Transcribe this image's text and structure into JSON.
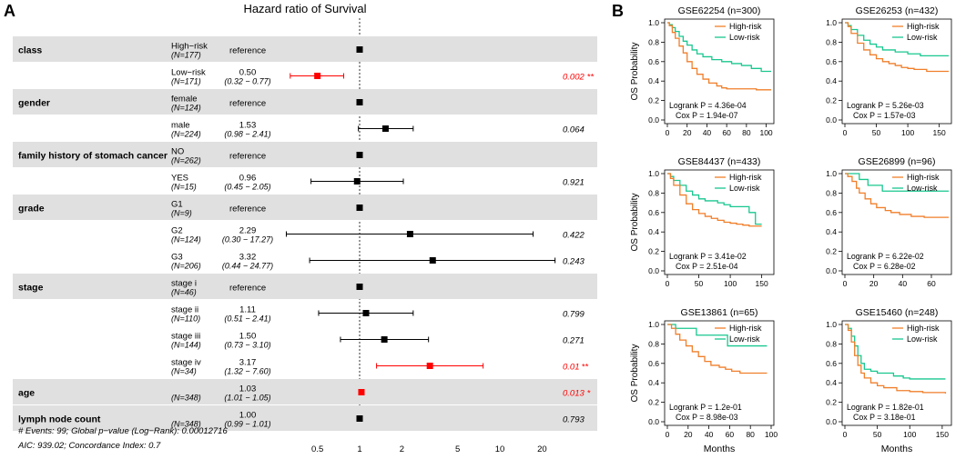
{
  "panel_labels": {
    "a": "A",
    "b": "B"
  },
  "colors": {
    "band": "#e0e0e0",
    "marker": "#000000",
    "sig": "#ff0000",
    "high_risk": "#f07f2a",
    "low_risk": "#18c78f",
    "axis": "#000000"
  },
  "chart_data": [
    {
      "type": "forest",
      "title": "Hazard ratio of Survival",
      "x_scale": "log",
      "xlim": [
        0.4,
        30
      ],
      "x_ticks": [
        0.5,
        1,
        2,
        5,
        10,
        20
      ],
      "x_tick_labels": [
        "0.5",
        "1",
        "2",
        "5",
        "10",
        "20"
      ],
      "reference_line": 1,
      "reference_text": "reference",
      "rows": [
        {
          "var": "class",
          "level": "High−risk",
          "n": "(N=177)",
          "ref": true,
          "band": true
        },
        {
          "var": "",
          "level": "Low−risk",
          "n": "(N=171)",
          "hr": 0.5,
          "hr_text": "0.50",
          "ci_text": "(0.32 − 0.77)",
          "lo": 0.32,
          "hi": 0.77,
          "p": "0.002",
          "stars": "**",
          "sig": true,
          "band": false
        },
        {
          "var": "gender",
          "level": "female",
          "n": "(N=124)",
          "ref": true,
          "band": true
        },
        {
          "var": "",
          "level": "male",
          "n": "(N=224)",
          "hr": 1.53,
          "hr_text": "1.53",
          "ci_text": "(0.98 − 2.41)",
          "lo": 0.98,
          "hi": 2.41,
          "p": "0.064",
          "stars": "",
          "sig": false,
          "band": false
        },
        {
          "var": "family history of stomach cancer",
          "level": "NO",
          "n": "(N=262)",
          "ref": true,
          "band": true
        },
        {
          "var": "",
          "level": "YES",
          "n": "(N=15)",
          "hr": 0.96,
          "hr_text": "0.96",
          "ci_text": "(0.45 − 2.05)",
          "lo": 0.45,
          "hi": 2.05,
          "p": "0.921",
          "stars": "",
          "sig": false,
          "band": false
        },
        {
          "var": "grade",
          "level": "G1",
          "n": "(N=9)",
          "ref": true,
          "band": true
        },
        {
          "var": "",
          "level": "G2",
          "n": "(N=124)",
          "hr": 2.29,
          "hr_text": "2.29",
          "ci_text": "(0.30 − 17.27)",
          "lo": 0.3,
          "hi": 17.27,
          "p": "0.422",
          "stars": "",
          "sig": false,
          "band": false
        },
        {
          "var": "",
          "level": "G3",
          "n": "(N=206)",
          "hr": 3.32,
          "hr_text": "3.32",
          "ci_text": "(0.44 − 24.77)",
          "lo": 0.44,
          "hi": 24.77,
          "p": "0.243",
          "stars": "",
          "sig": false,
          "band": false
        },
        {
          "var": "stage",
          "level": "stage i",
          "n": "(N=46)",
          "ref": true,
          "band": true
        },
        {
          "var": "",
          "level": "stage ii",
          "n": "(N=110)",
          "hr": 1.11,
          "hr_text": "1.11",
          "ci_text": "(0.51 − 2.41)",
          "lo": 0.51,
          "hi": 2.41,
          "p": "0.799",
          "stars": "",
          "sig": false,
          "band": false
        },
        {
          "var": "",
          "level": "stage iii",
          "n": "(N=144)",
          "hr": 1.5,
          "hr_text": "1.50",
          "ci_text": "(0.73 − 3.10)",
          "lo": 0.73,
          "hi": 3.1,
          "p": "0.271",
          "stars": "",
          "sig": false,
          "band": false
        },
        {
          "var": "",
          "level": "stage iv",
          "n": "(N=34)",
          "hr": 3.17,
          "hr_text": "3.17",
          "ci_text": "(1.32 − 7.60)",
          "lo": 1.32,
          "hi": 7.6,
          "p": "0.01",
          "stars": "**",
          "sig": true,
          "band": false
        },
        {
          "var": "age",
          "level": "",
          "n": "(N=348)",
          "hr": 1.03,
          "hr_text": "1.03",
          "ci_text": "(1.01 − 1.05)",
          "lo": 1.01,
          "hi": 1.05,
          "p": "0.013",
          "stars": "*",
          "sig": true,
          "band": true
        },
        {
          "var": "lymph node count",
          "level": "",
          "n": "(N=348)",
          "hr": 1.0,
          "hr_text": "1.00",
          "ci_text": "(0.99 − 1.01)",
          "lo": 0.99,
          "hi": 1.01,
          "p": "0.793",
          "stars": "",
          "sig": false,
          "band": true
        }
      ],
      "footer": [
        "# Events: 99; Global p−value (Log−Rank): 0.00012716",
        "AIC: 939.02; Concordance Index: 0.7"
      ]
    },
    {
      "type": "kaplan-meier-grid",
      "ylabel": "OS Probability",
      "xlabel": "Months",
      "ylim": [
        0,
        1
      ],
      "y_ticks": [
        "0.0",
        "0.2",
        "0.4",
        "0.6",
        "0.8",
        "1.0"
      ],
      "legend": [
        "High-risk",
        "Low-risk"
      ],
      "panels": [
        {
          "title": "GSE62254 (n=300)",
          "xmax": 105,
          "x_ticks": [
            0,
            20,
            40,
            60,
            80,
            100
          ],
          "logrank": "Logrank P = 4.36e-04",
          "cox": "Cox P = 1.94e-07",
          "high": [
            [
              0,
              1
            ],
            [
              2,
              0.97
            ],
            [
              5,
              0.9
            ],
            [
              8,
              0.84
            ],
            [
              12,
              0.76
            ],
            [
              16,
              0.69
            ],
            [
              20,
              0.6
            ],
            [
              25,
              0.53
            ],
            [
              30,
              0.47
            ],
            [
              36,
              0.42
            ],
            [
              42,
              0.38
            ],
            [
              50,
              0.35
            ],
            [
              55,
              0.33
            ],
            [
              60,
              0.32
            ],
            [
              80,
              0.32
            ],
            [
              90,
              0.31
            ],
            [
              105,
              0.31
            ]
          ],
          "low": [
            [
              0,
              1
            ],
            [
              2,
              0.98
            ],
            [
              5,
              0.95
            ],
            [
              8,
              0.91
            ],
            [
              12,
              0.86
            ],
            [
              16,
              0.81
            ],
            [
              20,
              0.77
            ],
            [
              25,
              0.72
            ],
            [
              30,
              0.68
            ],
            [
              36,
              0.65
            ],
            [
              45,
              0.62
            ],
            [
              55,
              0.6
            ],
            [
              65,
              0.58
            ],
            [
              75,
              0.56
            ],
            [
              85,
              0.53
            ],
            [
              95,
              0.5
            ],
            [
              105,
              0.5
            ]
          ]
        },
        {
          "title": "GSE26253 (n=432)",
          "xmax": 165,
          "x_ticks": [
            0,
            50,
            100,
            150
          ],
          "logrank": "Logrank P = 5.26e-03",
          "cox": "Cox P = 1.57e-03",
          "high": [
            [
              0,
              1
            ],
            [
              5,
              0.96
            ],
            [
              10,
              0.89
            ],
            [
              20,
              0.79
            ],
            [
              30,
              0.72
            ],
            [
              40,
              0.67
            ],
            [
              50,
              0.63
            ],
            [
              60,
              0.6
            ],
            [
              70,
              0.58
            ],
            [
              80,
              0.56
            ],
            [
              90,
              0.54
            ],
            [
              100,
              0.53
            ],
            [
              110,
              0.52
            ],
            [
              130,
              0.5
            ],
            [
              165,
              0.5
            ]
          ],
          "low": [
            [
              0,
              1
            ],
            [
              5,
              0.97
            ],
            [
              10,
              0.93
            ],
            [
              20,
              0.87
            ],
            [
              30,
              0.82
            ],
            [
              40,
              0.78
            ],
            [
              50,
              0.75
            ],
            [
              60,
              0.72
            ],
            [
              80,
              0.7
            ],
            [
              100,
              0.68
            ],
            [
              120,
              0.66
            ],
            [
              165,
              0.66
            ]
          ]
        },
        {
          "title": "GSE84437 (n=433)",
          "xmax": 165,
          "x_ticks": [
            0,
            50,
            100,
            150
          ],
          "logrank": "Logrank P = 3.41e-02",
          "cox": "Cox P = 2.51e-04",
          "high": [
            [
              0,
              1
            ],
            [
              5,
              0.95
            ],
            [
              10,
              0.88
            ],
            [
              20,
              0.78
            ],
            [
              30,
              0.69
            ],
            [
              40,
              0.63
            ],
            [
              50,
              0.59
            ],
            [
              60,
              0.56
            ],
            [
              70,
              0.54
            ],
            [
              80,
              0.52
            ],
            [
              90,
              0.5
            ],
            [
              100,
              0.49
            ],
            [
              110,
              0.48
            ],
            [
              120,
              0.47
            ],
            [
              130,
              0.46
            ],
            [
              150,
              0.46
            ]
          ],
          "low": [
            [
              0,
              1
            ],
            [
              5,
              0.97
            ],
            [
              10,
              0.93
            ],
            [
              20,
              0.88
            ],
            [
              30,
              0.82
            ],
            [
              40,
              0.78
            ],
            [
              50,
              0.74
            ],
            [
              60,
              0.72
            ],
            [
              70,
              0.72
            ],
            [
              80,
              0.7
            ],
            [
              90,
              0.68
            ],
            [
              100,
              0.66
            ],
            [
              110,
              0.66
            ],
            [
              120,
              0.66
            ],
            [
              130,
              0.6
            ],
            [
              140,
              0.48
            ],
            [
              150,
              0.48
            ]
          ]
        },
        {
          "title": "GSE26899 (n=96)",
          "xmax": 72,
          "x_ticks": [
            0,
            20,
            40,
            60
          ],
          "logrank": "Logrank P = 6.22e-02",
          "cox": "Cox P = 6.28e-02",
          "high": [
            [
              0,
              1
            ],
            [
              2,
              0.97
            ],
            [
              5,
              0.92
            ],
            [
              8,
              0.85
            ],
            [
              10,
              0.8
            ],
            [
              14,
              0.74
            ],
            [
              18,
              0.69
            ],
            [
              22,
              0.65
            ],
            [
              28,
              0.62
            ],
            [
              32,
              0.6
            ],
            [
              38,
              0.58
            ],
            [
              46,
              0.56
            ],
            [
              55,
              0.55
            ],
            [
              72,
              0.55
            ]
          ],
          "low": [
            [
              0,
              1
            ],
            [
              8,
              1
            ],
            [
              10,
              0.94
            ],
            [
              16,
              0.88
            ],
            [
              24,
              0.88
            ],
            [
              26,
              0.82
            ],
            [
              72,
              0.82
            ]
          ]
        },
        {
          "title": "GSE13861 (n=65)",
          "xmax": 100,
          "x_ticks": [
            0,
            20,
            40,
            60,
            80,
            100
          ],
          "logrank": "Logrank P = 1.2e-01",
          "cox": "Cox P = 8.98e-03",
          "high": [
            [
              0,
              1
            ],
            [
              4,
              0.96
            ],
            [
              8,
              0.9
            ],
            [
              12,
              0.84
            ],
            [
              18,
              0.78
            ],
            [
              24,
              0.72
            ],
            [
              30,
              0.67
            ],
            [
              36,
              0.62
            ],
            [
              42,
              0.58
            ],
            [
              50,
              0.56
            ],
            [
              56,
              0.54
            ],
            [
              62,
              0.52
            ],
            [
              70,
              0.5
            ],
            [
              96,
              0.5
            ]
          ],
          "low": [
            [
              0,
              1
            ],
            [
              6,
              1
            ],
            [
              8,
              0.96
            ],
            [
              26,
              0.96
            ],
            [
              28,
              0.89
            ],
            [
              56,
              0.89
            ],
            [
              58,
              0.78
            ],
            [
              96,
              0.78
            ]
          ]
        },
        {
          "title": "GSE15460 (n=248)",
          "xmax": 160,
          "x_ticks": [
            0,
            50,
            100,
            150
          ],
          "logrank": "Logrank P = 1.82e-01",
          "cox": "Cox P = 3.18e-01",
          "high": [
            [
              0,
              1
            ],
            [
              5,
              0.94
            ],
            [
              10,
              0.82
            ],
            [
              15,
              0.68
            ],
            [
              20,
              0.58
            ],
            [
              25,
              0.5
            ],
            [
              30,
              0.45
            ],
            [
              40,
              0.4
            ],
            [
              50,
              0.37
            ],
            [
              60,
              0.35
            ],
            [
              80,
              0.32
            ],
            [
              100,
              0.31
            ],
            [
              120,
              0.3
            ],
            [
              155,
              0.29
            ]
          ],
          "low": [
            [
              0,
              1
            ],
            [
              5,
              0.96
            ],
            [
              10,
              0.88
            ],
            [
              15,
              0.78
            ],
            [
              20,
              0.68
            ],
            [
              25,
              0.6
            ],
            [
              30,
              0.54
            ],
            [
              40,
              0.52
            ],
            [
              50,
              0.5
            ],
            [
              60,
              0.5
            ],
            [
              75,
              0.47
            ],
            [
              90,
              0.45
            ],
            [
              100,
              0.44
            ],
            [
              155,
              0.44
            ]
          ]
        }
      ]
    }
  ]
}
